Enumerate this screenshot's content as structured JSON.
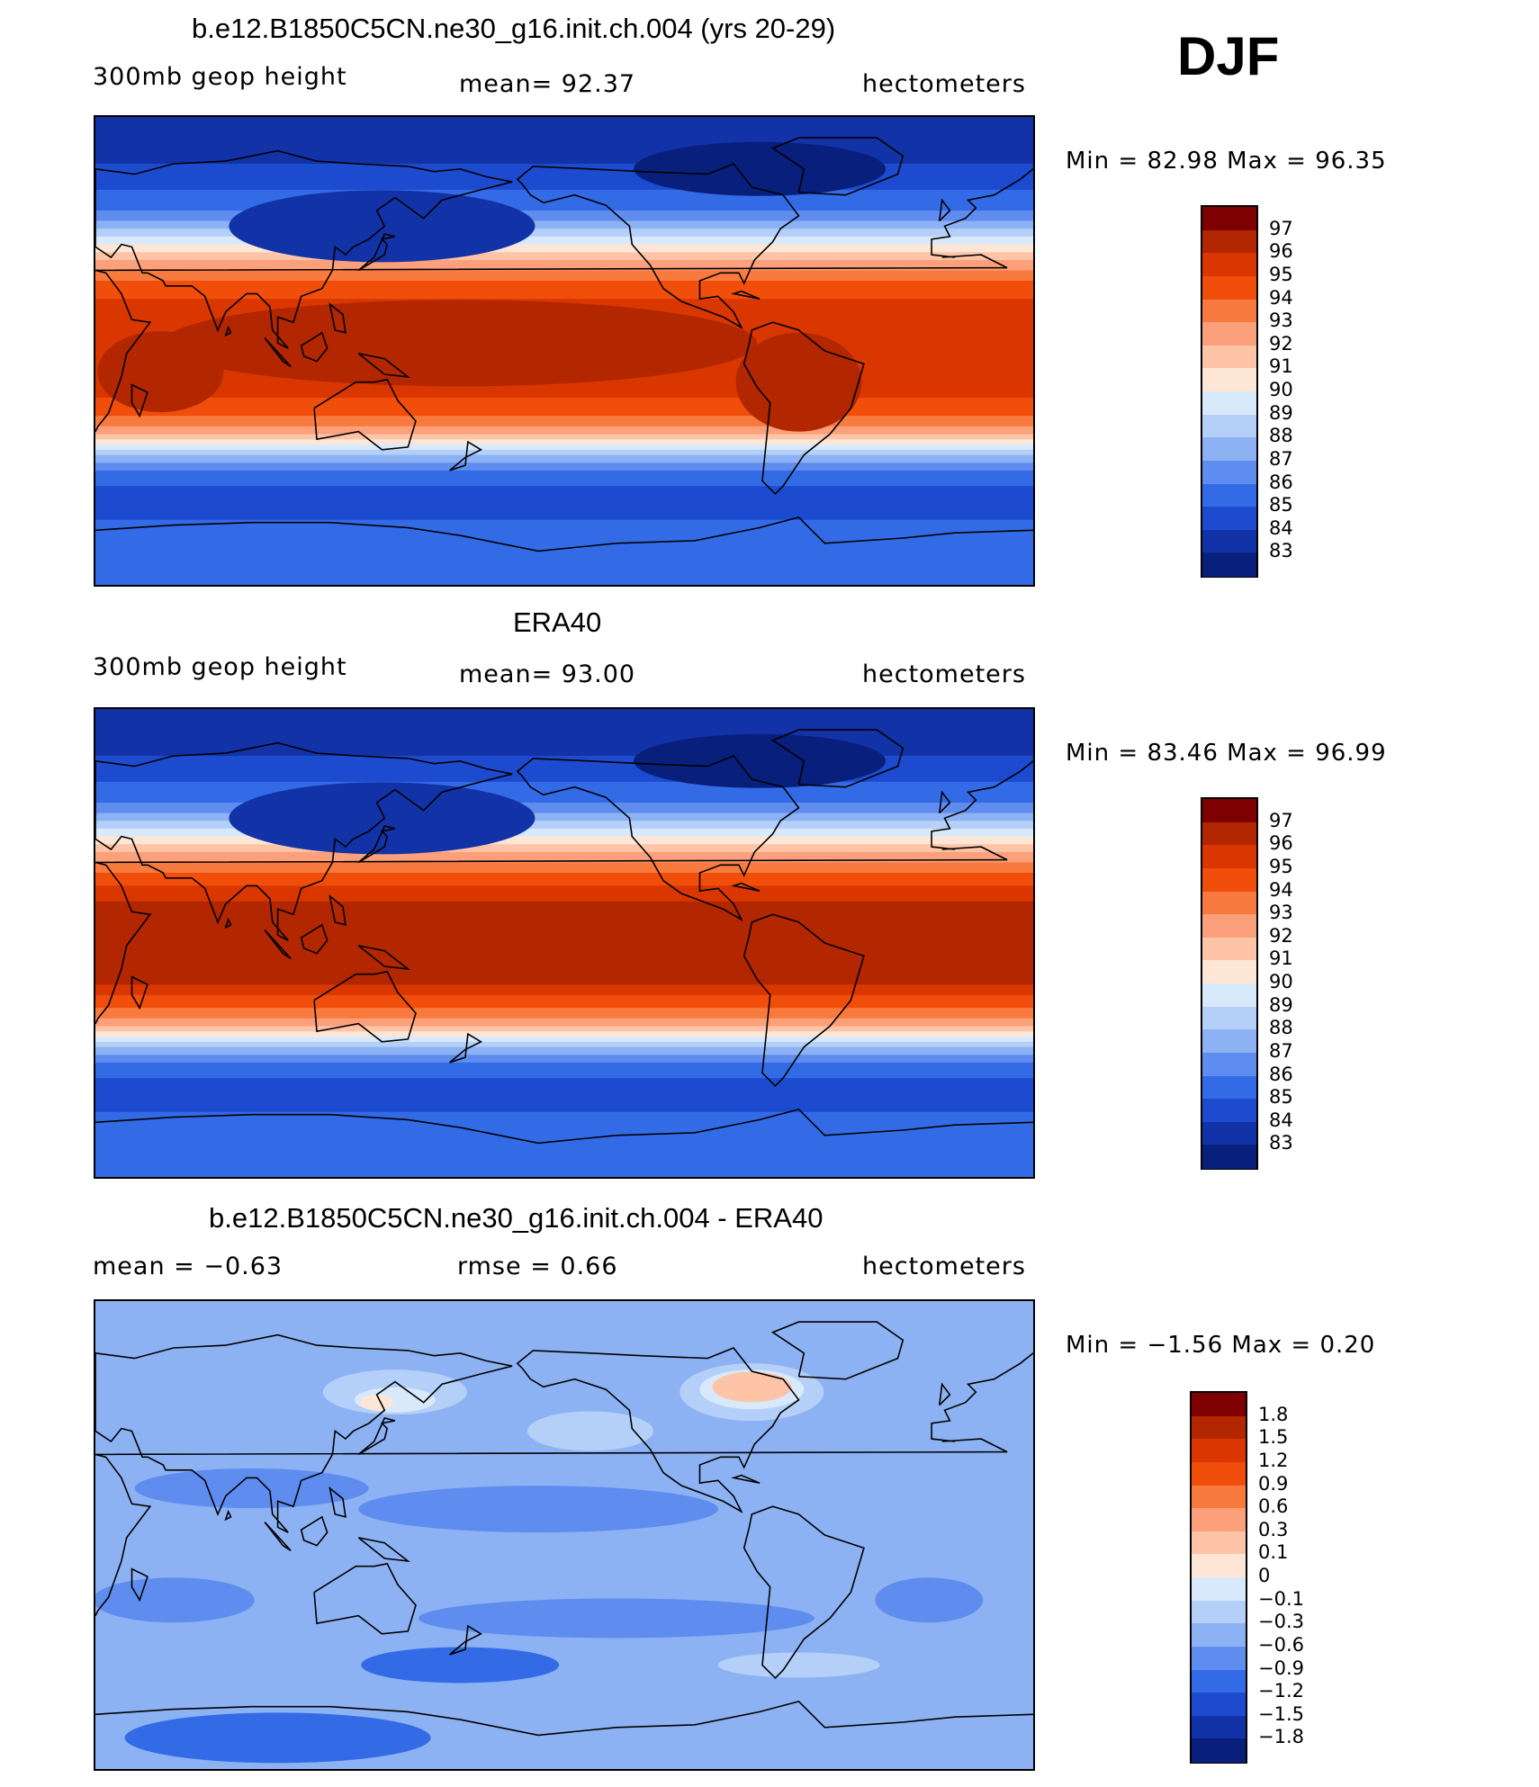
{
  "season": "DJF",
  "panels": [
    {
      "title": "b.e12.B1850C5CN.ne30_g16.init.ch.004 (yrs 20-29)",
      "left_label": "300mb  geop  height",
      "center_label": "mean=   92.37",
      "right_label": "hectometers",
      "minmax": "Min  =    82.98  Max  =    96.35",
      "colorbar": {
        "labels": [
          "97",
          "96",
          "95",
          "94",
          "93",
          "92",
          "91",
          "90",
          "89",
          "88",
          "87",
          "86",
          "85",
          "84",
          "83"
        ],
        "colors": [
          "#7f0000",
          "#b22600",
          "#d93600",
          "#f04e0a",
          "#f87a3e",
          "#fba07a",
          "#fdc4a8",
          "#fee6d6",
          "#d8e9fb",
          "#b4d0f8",
          "#8db2f4",
          "#5f8def",
          "#336be6",
          "#1d4bd0",
          "#1232a8",
          "#081f7c"
        ]
      },
      "field": "model"
    },
    {
      "title": "ERA40",
      "left_label": "300mb  geop  height",
      "center_label": "mean=   93.00",
      "right_label": "hectometers",
      "minmax": "Min  =    83.46  Max  =    96.99",
      "colorbar": {
        "labels": [
          "97",
          "96",
          "95",
          "94",
          "93",
          "92",
          "91",
          "90",
          "89",
          "88",
          "87",
          "86",
          "85",
          "84",
          "83"
        ],
        "colors": [
          "#7f0000",
          "#b22600",
          "#d93600",
          "#f04e0a",
          "#f87a3e",
          "#fba07a",
          "#fdc4a8",
          "#fee6d6",
          "#d8e9fb",
          "#b4d0f8",
          "#8db2f4",
          "#5f8def",
          "#336be6",
          "#1d4bd0",
          "#1232a8",
          "#081f7c"
        ]
      },
      "field": "obs"
    },
    {
      "title": "b.e12.B1850C5CN.ne30_g16.init.ch.004 - ERA40",
      "left_label": "mean  =    −0.63",
      "center_label": "rmse  =     0.66",
      "right_label": "hectometers",
      "minmax": "Min  =   −1.56  Max  =     0.20",
      "colorbar": {
        "labels": [
          "1.8",
          "1.5",
          "1.2",
          "0.9",
          "0.6",
          "0.3",
          "0.1",
          "0",
          "−0.1",
          "−0.3",
          "−0.6",
          "−0.9",
          "−1.2",
          "−1.5",
          "−1.8"
        ],
        "colors": [
          "#7f0000",
          "#b22600",
          "#d93600",
          "#f04e0a",
          "#f87a3e",
          "#fba07a",
          "#fdc4a8",
          "#fee6d6",
          "#d8e9fb",
          "#b4d0f8",
          "#8db2f4",
          "#5f8def",
          "#336be6",
          "#1d4bd0",
          "#1232a8",
          "#081f7c"
        ]
      },
      "field": "diff"
    }
  ]
}
